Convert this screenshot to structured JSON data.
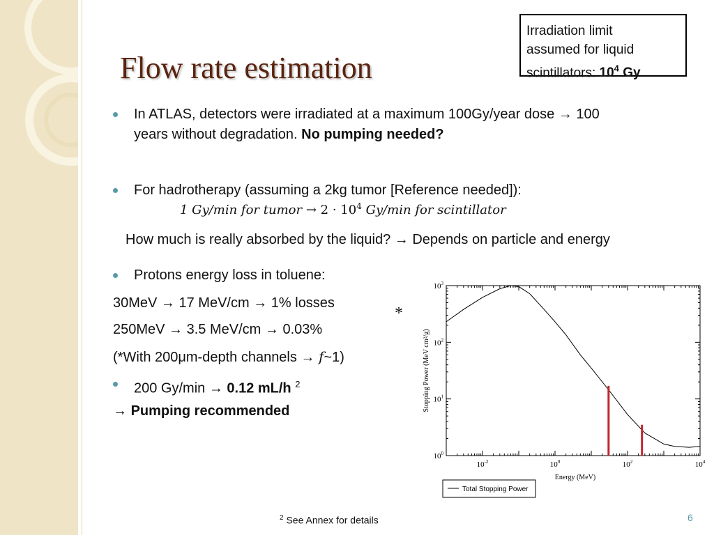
{
  "slide": {
    "title": "Flow rate estimation",
    "callout": {
      "line1": "Irradiation limit",
      "line2": "assumed for liquid",
      "line3": "scintillators:",
      "limit_base": "10",
      "limit_exp": "4",
      "limit_unit": "Gy"
    },
    "bullet1": {
      "text_a": "In ATLAS, detectors were irradiated at a maximum 100Gy/year dose",
      "arrow": "→",
      "text_b": "100",
      "line2": "years without degradation.",
      "bold": "No pumping needed?"
    },
    "bullet2": {
      "text": "For hadrotherapy (assuming a 2kg tumor [Reference needed]):"
    },
    "formula": {
      "left": "1 Gy/min for tumor",
      "arrow": "→",
      "right_a": "2 · 10",
      "right_exp": "4",
      "right_b": "Gy/min for scintillator"
    },
    "question": {
      "text_a": "How much is really absorbed by the liquid?",
      "arrow": "→",
      "text_b": "Depends on particle and energy"
    },
    "bullet3": {
      "text": "Protons energy loss in toluene:"
    },
    "line30": {
      "a": "30MeV",
      "b": "17 MeV/cm",
      "c": "1% losses"
    },
    "line250": {
      "a": "250MeV",
      "b": "3.5 MeV/cm",
      "c": "0.03%"
    },
    "note": {
      "a": "(*With 200μm-depth channels",
      "b": "f",
      "c": "~1)"
    },
    "bullet4": {
      "a": "200 Gy/min",
      "b": "0.12 mL/h",
      "sup": "2"
    },
    "conclusion": {
      "text": "Pumping recommended"
    },
    "star": "*",
    "footnote": {
      "sup": "2",
      "text": "See Annex for details"
    },
    "page_number": "6"
  },
  "colors": {
    "title": "#5a2410",
    "bullet": "#5a9aa8",
    "sidebar": "#efe4c6",
    "marker": "#c0272d"
  },
  "chart_data": {
    "type": "line",
    "xlabel": "Energy (MeV)",
    "ylabel": "Stopping Power (MeV cm²/g)",
    "x_scale": "log",
    "y_scale": "log",
    "xlim": [
      0.001,
      10000
    ],
    "ylim": [
      1,
      1000
    ],
    "x_ticks": [
      {
        "b": "10",
        "e": "-2"
      },
      {
        "b": "10",
        "e": "0"
      },
      {
        "b": "10",
        "e": "2"
      },
      {
        "b": "10",
        "e": "4"
      }
    ],
    "y_ticks": [
      {
        "b": "10",
        "e": "0"
      },
      {
        "b": "10",
        "e": "1"
      },
      {
        "b": "10",
        "e": "2"
      },
      {
        "b": "10",
        "e": "3"
      }
    ],
    "legend": "bottom-left",
    "series": [
      {
        "name": "Total Stopping Power",
        "x": [
          0.001,
          0.003,
          0.01,
          0.03,
          0.06,
          0.1,
          0.2,
          0.5,
          1,
          2,
          5,
          10,
          30,
          100,
          300,
          1000,
          2000,
          5000,
          10000
        ],
        "y": [
          230,
          380,
          620,
          880,
          1000,
          960,
          720,
          380,
          230,
          135,
          60,
          35,
          14.5,
          5.3,
          2.5,
          1.6,
          1.45,
          1.4,
          1.45
        ]
      }
    ],
    "markers": [
      {
        "x": 30,
        "y": 17
      },
      {
        "x": 250,
        "y": 3.5
      }
    ]
  }
}
